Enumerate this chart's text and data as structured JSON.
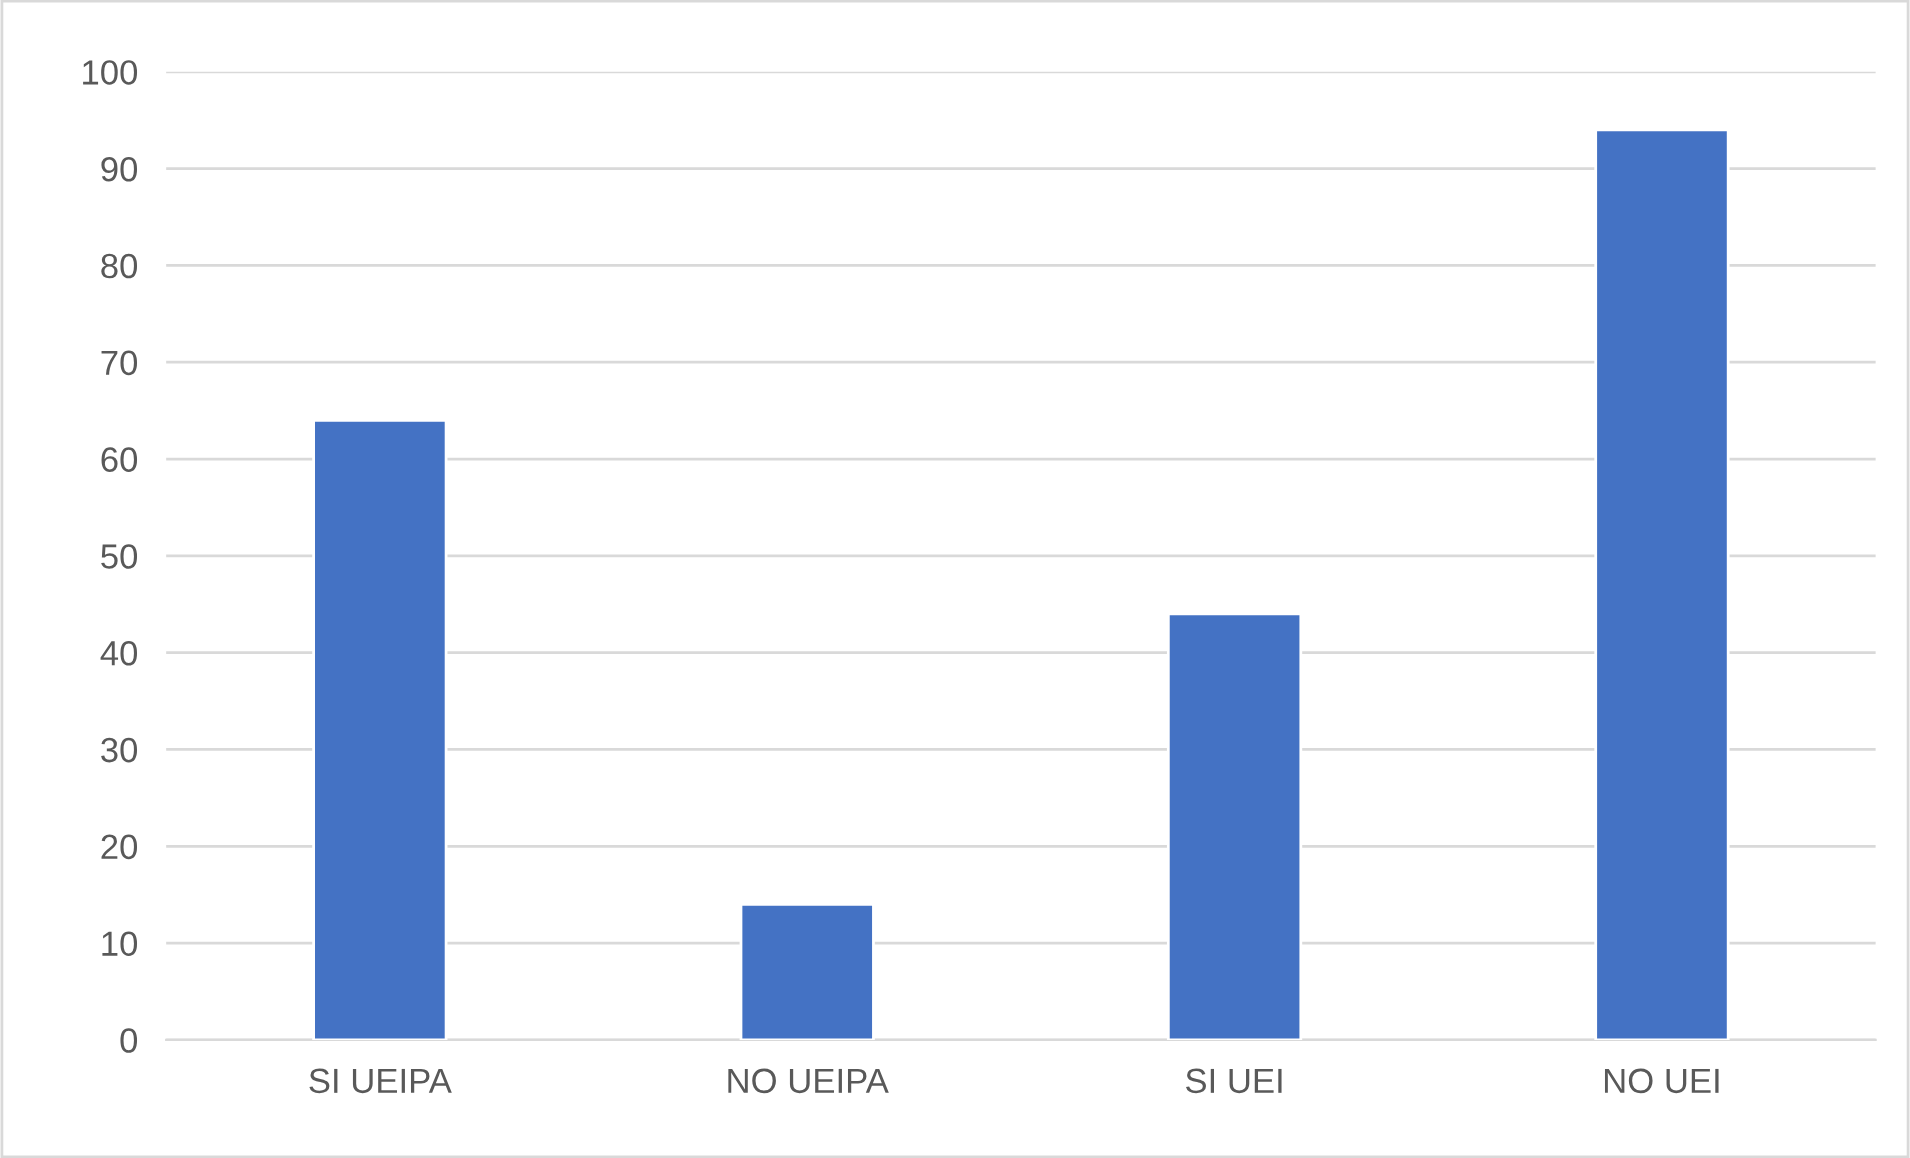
{
  "chart_data": {
    "type": "bar",
    "categories": [
      "SI UEIPA",
      "NO UEIPA",
      "SI UEI",
      "NO UEI"
    ],
    "values": [
      64,
      14,
      44,
      94
    ],
    "color": "#4472c4",
    "ylim": [
      0,
      100
    ],
    "yticks": [
      0,
      10,
      20,
      30,
      40,
      50,
      60,
      70,
      80,
      90,
      100
    ],
    "grid": "y",
    "legend": false
  }
}
